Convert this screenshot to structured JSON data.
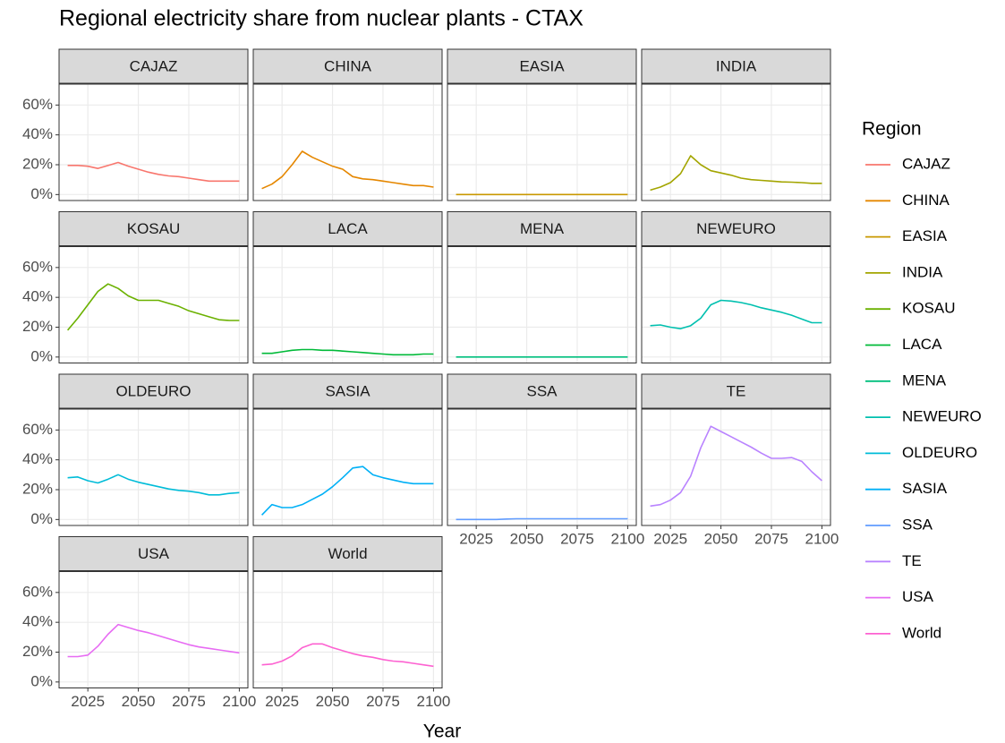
{
  "chart_data": {
    "type": "line",
    "title": "Regional electricity share from nuclear plants - CTAX",
    "x_label": "Year",
    "legend_title": "Region",
    "grid": true,
    "x": [
      2015,
      2020,
      2025,
      2030,
      2035,
      2040,
      2045,
      2050,
      2055,
      2060,
      2065,
      2070,
      2075,
      2080,
      2085,
      2090,
      2095,
      2100
    ],
    "xlim": [
      2010.75,
      2104.25
    ],
    "xticks": [
      2025,
      2050,
      2075,
      2100
    ],
    "ylim": [
      -4,
      74
    ],
    "yticks": [
      {
        "value": 0,
        "label": "0%"
      },
      {
        "value": 20,
        "label": "20%"
      },
      {
        "value": 40,
        "label": "40%"
      },
      {
        "value": 60,
        "label": "60%"
      }
    ],
    "series": [
      {
        "name": "CAJAZ",
        "color": "#F8766D",
        "values": [
          19.5,
          19.5,
          19,
          17.5,
          19.5,
          21.5,
          19,
          17,
          15,
          13.5,
          12.5,
          12,
          11,
          10,
          9,
          9,
          9,
          9
        ]
      },
      {
        "name": "CHINA",
        "color": "#E58700",
        "values": [
          4,
          7,
          12,
          20,
          29,
          25,
          22,
          19,
          17,
          12,
          10.5,
          10,
          9,
          8,
          7,
          6,
          6,
          5
        ]
      },
      {
        "name": "EASIA",
        "color": "#C99800",
        "values": [
          0,
          0,
          0,
          0,
          0,
          0,
          0,
          0,
          0,
          0,
          0,
          0,
          0,
          0,
          0,
          0,
          0,
          0
        ]
      },
      {
        "name": "INDIA",
        "color": "#A3A500",
        "values": [
          3,
          5,
          8,
          14,
          26,
          20,
          16,
          14.5,
          13,
          11,
          10,
          9.5,
          9,
          8.5,
          8.3,
          8,
          7.5,
          7.5
        ]
      },
      {
        "name": "KOSAU",
        "color": "#6BB100",
        "values": [
          18,
          26,
          35,
          44,
          49,
          46,
          41,
          38,
          38,
          38,
          36,
          34,
          31,
          29,
          27,
          25,
          24.5,
          24.5
        ]
      },
      {
        "name": "LACA",
        "color": "#00BA38",
        "values": [
          2.5,
          2.5,
          3.5,
          4.5,
          5,
          5,
          4.5,
          4.5,
          4,
          3.5,
          3,
          2.5,
          2,
          1.5,
          1.5,
          1.5,
          2,
          2
        ]
      },
      {
        "name": "MENA",
        "color": "#00BF7D",
        "values": [
          0,
          0,
          0,
          0,
          0,
          0,
          0,
          0,
          0,
          0,
          0,
          0,
          0,
          0,
          0,
          0,
          0,
          0
        ]
      },
      {
        "name": "NEWEURO",
        "color": "#00C0AF",
        "values": [
          21,
          21.5,
          20,
          19,
          21,
          26,
          35,
          38,
          37.5,
          36.5,
          35,
          33,
          31.5,
          30,
          28,
          25.5,
          23,
          23
        ]
      },
      {
        "name": "OLDEURO",
        "color": "#00BCD8",
        "values": [
          28,
          28.5,
          26,
          24.5,
          27,
          30,
          27,
          25,
          23.5,
          22,
          20.5,
          19.5,
          19,
          18,
          16.5,
          16.5,
          17.5,
          18
        ]
      },
      {
        "name": "SASIA",
        "color": "#00B0F6",
        "values": [
          3,
          10,
          8,
          8,
          10,
          13.5,
          17,
          22,
          28,
          34.5,
          35.5,
          30,
          28,
          26.5,
          25,
          24,
          24,
          24
        ]
      },
      {
        "name": "SSA",
        "color": "#619CFF",
        "values": [
          0,
          0,
          0,
          0,
          0,
          0.3,
          0.5,
          0.5,
          0.5,
          0.5,
          0.5,
          0.5,
          0.5,
          0.5,
          0.5,
          0.5,
          0.5,
          0.5
        ]
      },
      {
        "name": "TE",
        "color": "#B983FF",
        "values": [
          9,
          10,
          13,
          18,
          29,
          48,
          62.5,
          59,
          55.5,
          52,
          48.5,
          44.5,
          41,
          41,
          41.5,
          39,
          32,
          26
        ]
      },
      {
        "name": "USA",
        "color": "#E76BF3",
        "values": [
          17,
          17,
          18,
          24,
          32,
          38.5,
          36.5,
          34.5,
          33,
          31,
          29,
          27,
          25,
          23.5,
          22.5,
          21.5,
          20.5,
          19.5
        ]
      },
      {
        "name": "World",
        "color": "#FD61D1",
        "values": [
          11.5,
          12,
          14,
          17.5,
          23,
          25.5,
          25.5,
          23,
          21,
          19,
          17.5,
          16.5,
          15,
          14,
          13.5,
          12.5,
          11.5,
          10.5
        ]
      }
    ]
  }
}
